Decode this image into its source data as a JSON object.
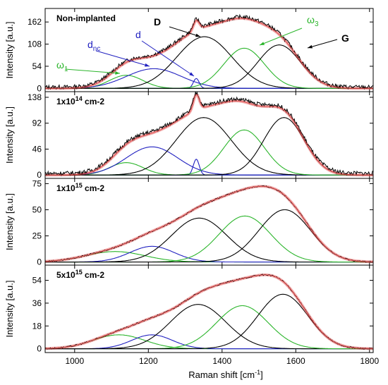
{
  "chart_data": {
    "type": "line",
    "xlabel": "Raman shift [cm",
    "xlabel_sup": "-1",
    "xlabel_end": "]",
    "ylabel": "Intensity [a.u.]",
    "xlim": [
      920,
      1810
    ],
    "x_ticks": [
      "1000",
      "1200",
      "1400",
      "1600",
      "1800"
    ],
    "colors": {
      "measured": "#000000",
      "fit": "#e04a4a",
      "D_G": "#000000",
      "omega": "#2bb52b",
      "d": "#2020c0"
    },
    "panels": [
      {
        "label": "Non-implanted",
        "label_sup": "",
        "label_end": "",
        "ylim": [
          -8,
          195
        ],
        "y_ticks": [
          "0",
          "54",
          "108",
          "162"
        ],
        "components": [
          {
            "name": "ω1",
            "type": "omega",
            "center": 1140,
            "amp": 32,
            "width": 45
          },
          {
            "name": "dnc",
            "type": "d",
            "center": 1215,
            "amp": 48,
            "width": 75
          },
          {
            "name": "d",
            "type": "d",
            "center": 1330,
            "amp": 24,
            "width": 8
          },
          {
            "name": "D",
            "type": "D_G",
            "center": 1352,
            "amp": 126,
            "width": 75
          },
          {
            "name": "ω3",
            "type": "omega",
            "center": 1460,
            "amp": 98,
            "width": 55
          },
          {
            "name": "G",
            "type": "D_G",
            "center": 1555,
            "amp": 106,
            "width": 58
          }
        ],
        "annotations": [
          {
            "text": "D",
            "color": "#000000"
          },
          {
            "text": "G",
            "color": "#000000"
          },
          {
            "text": "d",
            "sub": "nc",
            "color": "#2020c0"
          },
          {
            "text": "d",
            "sub": "",
            "color": "#2020c0"
          },
          {
            "text": "ω",
            "sub": "1",
            "color": "#2bb52b"
          },
          {
            "text": "ω",
            "sub": "3",
            "color": "#2bb52b"
          }
        ]
      },
      {
        "label": "1x10",
        "label_sup": "14",
        "label_end": " cm-2",
        "ylim": [
          -6,
          148
        ],
        "y_ticks": [
          "0",
          "46",
          "92",
          "138"
        ],
        "components": [
          {
            "name": "ω1",
            "type": "omega",
            "center": 1140,
            "amp": 22,
            "width": 45
          },
          {
            "name": "dnc",
            "type": "d",
            "center": 1210,
            "amp": 50,
            "width": 70
          },
          {
            "name": "d",
            "type": "d",
            "center": 1330,
            "amp": 28,
            "width": 8
          },
          {
            "name": "D",
            "type": "D_G",
            "center": 1350,
            "amp": 102,
            "width": 75
          },
          {
            "name": "ω3",
            "type": "omega",
            "center": 1460,
            "amp": 80,
            "width": 55
          },
          {
            "name": "G",
            "type": "D_G",
            "center": 1568,
            "amp": 102,
            "width": 55
          }
        ]
      },
      {
        "label": "1x10",
        "label_sup": "15",
        "label_end": " cm-2",
        "ylim": [
          -3,
          80
        ],
        "y_ticks": [
          "0",
          "25",
          "50",
          "75"
        ],
        "components": [
          {
            "name": "ω1",
            "type": "omega",
            "center": 1110,
            "amp": 10,
            "width": 80
          },
          {
            "name": "dnc",
            "type": "d",
            "center": 1210,
            "amp": 15,
            "width": 60
          },
          {
            "name": "D",
            "type": "D_G",
            "center": 1338,
            "amp": 42,
            "width": 75
          },
          {
            "name": "ω3",
            "type": "omega",
            "center": 1462,
            "amp": 44,
            "width": 70
          },
          {
            "name": "G",
            "type": "D_G",
            "center": 1570,
            "amp": 50,
            "width": 70
          }
        ]
      },
      {
        "label": "5x10",
        "label_sup": "15",
        "label_end": " cm-2",
        "ylim": [
          -3,
          66
        ],
        "y_ticks": [
          "0",
          "18",
          "36",
          "54"
        ],
        "components": [
          {
            "name": "ω1",
            "type": "omega",
            "center": 1120,
            "amp": 11,
            "width": 70
          },
          {
            "name": "dnc",
            "type": "d",
            "center": 1210,
            "amp": 11,
            "width": 55
          },
          {
            "name": "D",
            "type": "D_G",
            "center": 1335,
            "amp": 35,
            "width": 75
          },
          {
            "name": "ω3",
            "type": "omega",
            "center": 1455,
            "amp": 34,
            "width": 70
          },
          {
            "name": "G",
            "type": "D_G",
            "center": 1565,
            "amp": 43,
            "width": 68
          }
        ]
      }
    ]
  }
}
